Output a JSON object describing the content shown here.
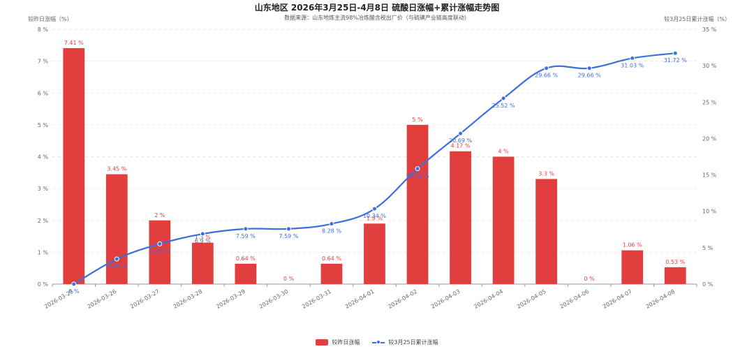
{
  "chart_data": {
    "type": "bar+line",
    "title": "山东地区 2026年3月25日-4月8日 硫酸日涨幅+累计涨幅走势图",
    "subtitle": "数据来源：山东地炼主流98%冶炼酸含税出厂价（与硫磺产业链高度联动）",
    "ylabel_left": "较昨日涨幅（%）",
    "ylabel_right": "较3月25日累计涨幅（%）",
    "categories": [
      "2026-03-25",
      "2026-03-26",
      "2026-03-27",
      "2026-03-28",
      "2026-03-29",
      "2026-03-30",
      "2026-03-31",
      "2026-04-01",
      "2026-04-02",
      "2026-04-03",
      "2026-04-04",
      "2026-04-05",
      "2026-04-06",
      "2026-04-07",
      "2026-04-08"
    ],
    "series": [
      {
        "name": "较昨日涨幅",
        "type": "bar",
        "axis": "left",
        "color": "#e23e3e",
        "values": [
          7.41,
          3.45,
          2,
          1.3,
          0.64,
          0,
          0.64,
          1.9,
          5,
          4.17,
          4,
          3.3,
          0,
          1.06,
          0.53
        ],
        "labels": [
          "7.41 %",
          "3.45 %",
          "2 %",
          "1.3 %",
          "0.64 %",
          "0 %",
          "0.64 %",
          "1.9 %",
          "5 %",
          "4.17 %",
          "4 %",
          "3.3 %",
          "0 %",
          "1.06 %",
          "0.53 %"
        ]
      },
      {
        "name": "较3月25日累计涨幅",
        "type": "line",
        "axis": "right",
        "color": "#3b6fdc",
        "values": [
          0,
          3.45,
          5.52,
          6.9,
          7.59,
          7.59,
          8.28,
          10.34,
          15.86,
          20.69,
          25.52,
          29.66,
          29.66,
          31.03,
          31.72
        ],
        "labels": [
          "0 %",
          "3.45 %",
          "5.52 %",
          "6.9 %",
          "7.59 %",
          "7.59 %",
          "8.28 %",
          "10.34 %",
          "15.86 %",
          "20.69 %",
          "25.52 %",
          "29.66 %",
          "29.66 %",
          "31.03 %",
          "31.72 %"
        ]
      }
    ],
    "y_left": {
      "min": 0,
      "max": 8,
      "ticks": [
        "0 %",
        "1 %",
        "2 %",
        "3 %",
        "4 %",
        "5 %",
        "6 %",
        "7 %",
        "8 %"
      ]
    },
    "y_right": {
      "min": 0,
      "max": 35,
      "ticks": [
        "0 %",
        "5 %",
        "10 %",
        "15 %",
        "20 %",
        "25 %",
        "30 %",
        "35 %"
      ]
    },
    "grid": true,
    "legend_position": "bottom-center"
  },
  "legend": {
    "bar_label": "较昨日涨幅",
    "line_label": "较3月25日累计涨幅",
    "bar_color": "#e23e3e",
    "line_color": "#3b6fdc"
  }
}
